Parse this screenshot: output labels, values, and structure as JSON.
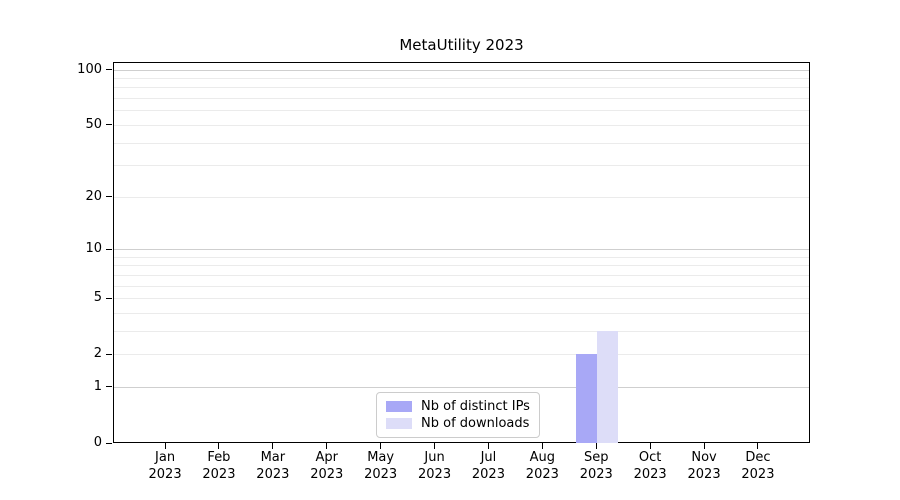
{
  "chart_data": {
    "type": "bar",
    "title": "MetaUtility 2023",
    "x_tick_labels": [
      [
        "Jan",
        "2023"
      ],
      [
        "Feb",
        "2023"
      ],
      [
        "Mar",
        "2023"
      ],
      [
        "Apr",
        "2023"
      ],
      [
        "May",
        "2023"
      ],
      [
        "Jun",
        "2023"
      ],
      [
        "Jul",
        "2023"
      ],
      [
        "Aug",
        "2023"
      ],
      [
        "Sep",
        "2023"
      ],
      [
        "Oct",
        "2023"
      ],
      [
        "Nov",
        "2023"
      ],
      [
        "Dec",
        "2023"
      ]
    ],
    "series": [
      {
        "name": "Nb of distinct IPs",
        "color": "#a8a8f6",
        "values": [
          0,
          0,
          0,
          0,
          0,
          0,
          0,
          0,
          2,
          0,
          0,
          0
        ]
      },
      {
        "name": "Nb of downloads",
        "color": "#ddddf8",
        "values": [
          0,
          0,
          0,
          0,
          0,
          0,
          0,
          0,
          3,
          0,
          0,
          0
        ]
      }
    ],
    "yscale": "log1p",
    "ylim": [
      0,
      110
    ],
    "yticks": [
      0,
      1,
      2,
      5,
      10,
      20,
      50,
      100
    ],
    "minor_gridlines": [
      3,
      4,
      6,
      7,
      8,
      9,
      30,
      40,
      60,
      70,
      80,
      90
    ],
    "emphasized_gridlines": [
      1,
      10,
      100
    ],
    "grid": "horizontal",
    "legend_position": "bottom-center",
    "colors": {
      "grid_minor": "#ebebeb",
      "grid_major": "#cfcfcf",
      "axis": "#000000",
      "background": "#ffffff"
    }
  }
}
